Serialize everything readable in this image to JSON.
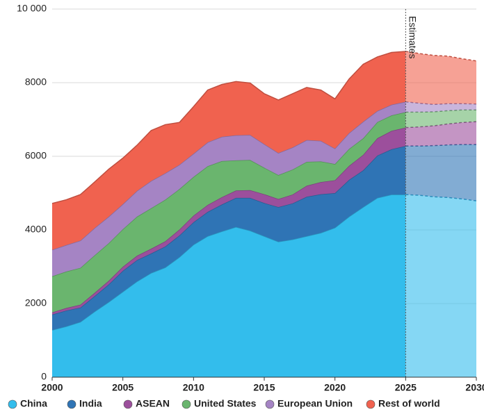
{
  "chart_data": {
    "type": "stacked_area",
    "x": [
      2000,
      2001,
      2002,
      2003,
      2004,
      2005,
      2006,
      2007,
      2008,
      2009,
      2010,
      2011,
      2012,
      2013,
      2014,
      2015,
      2016,
      2017,
      2018,
      2019,
      2020,
      2021,
      2022,
      2023,
      2024,
      2025,
      2026,
      2027,
      2028,
      2029,
      2030
    ],
    "series": [
      {
        "name": "China",
        "color": "#33bdec",
        "values": [
          1280,
          1380,
          1500,
          1780,
          2040,
          2320,
          2600,
          2830,
          2980,
          3260,
          3600,
          3830,
          3960,
          4080,
          3980,
          3830,
          3680,
          3740,
          3830,
          3920,
          4060,
          4360,
          4620,
          4870,
          4960,
          4960,
          4940,
          4900,
          4880,
          4840,
          4790
        ]
      },
      {
        "name": "India",
        "color": "#2f74b5",
        "values": [
          420,
          430,
          390,
          420,
          480,
          570,
          580,
          530,
          570,
          590,
          610,
          660,
          730,
          790,
          890,
          900,
          940,
          980,
          1070,
          1050,
          940,
          1000,
          1000,
          1150,
          1230,
          1320,
          1340,
          1390,
          1430,
          1480,
          1530
        ]
      },
      {
        "name": "ASEAN",
        "color": "#9c4f9c",
        "values": [
          60,
          70,
          80,
          90,
          100,
          110,
          120,
          130,
          140,
          160,
          180,
          190,
          200,
          200,
          210,
          240,
          220,
          240,
          300,
          330,
          350,
          380,
          420,
          470,
          500,
          500,
          520,
          540,
          570,
          600,
          620
        ]
      },
      {
        "name": "United States",
        "color": "#6ab56e",
        "values": [
          980,
          990,
          1000,
          1020,
          1020,
          1020,
          1060,
          1100,
          1130,
          1100,
          1050,
          1050,
          980,
          820,
          820,
          720,
          650,
          680,
          650,
          560,
          440,
          460,
          450,
          440,
          420,
          420,
          400,
          380,
          360,
          340,
          320
        ]
      },
      {
        "name": "European Union",
        "color": "#a584c4",
        "values": [
          720,
          720,
          740,
          740,
          720,
          680,
          700,
          740,
          720,
          660,
          630,
          650,
          660,
          680,
          680,
          640,
          600,
          600,
          590,
          560,
          420,
          430,
          450,
          300,
          290,
          280,
          240,
          200,
          190,
          170,
          160
        ]
      },
      {
        "name": "Rest of world",
        "color": "#f0624f",
        "values": [
          1260,
          1230,
          1250,
          1250,
          1290,
          1250,
          1240,
          1370,
          1320,
          1150,
          1280,
          1420,
          1420,
          1460,
          1410,
          1370,
          1440,
          1460,
          1430,
          1380,
          1350,
          1470,
          1560,
          1470,
          1420,
          1370,
          1350,
          1330,
          1290,
          1220,
          1170
        ]
      }
    ],
    "annotation": {
      "text": "Estimates",
      "x": 2025
    },
    "xlim": [
      2000,
      2030
    ],
    "xticks": [
      2000,
      2005,
      2010,
      2015,
      2020,
      2025,
      2030
    ],
    "ylim": [
      0,
      10000
    ],
    "yticks": [
      0,
      2000,
      4000,
      6000,
      8000,
      {
        "value": 10000,
        "label": "10 000"
      }
    ],
    "grid": true
  }
}
